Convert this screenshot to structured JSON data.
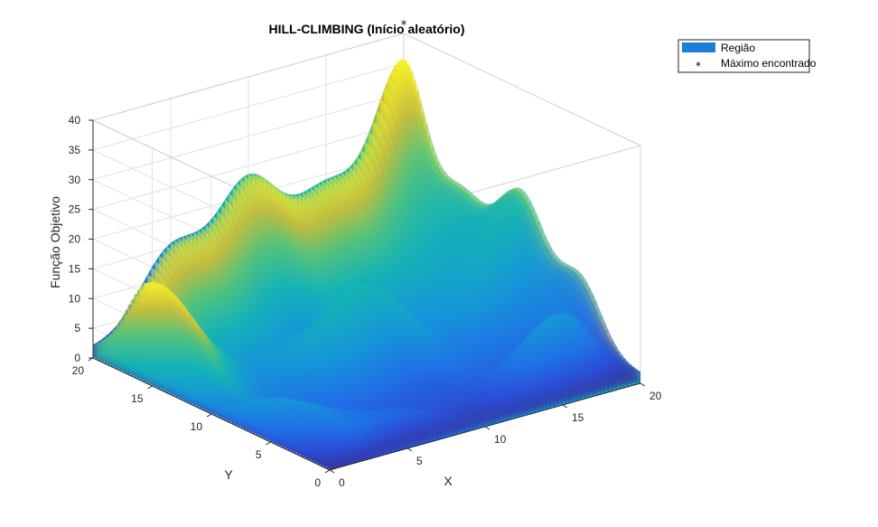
{
  "chart_data": {
    "type": "surface",
    "title": "HILL-CLIMBING (Início aleatório)",
    "xlabel": "X",
    "ylabel": "Y",
    "zlabel": "Função Objetivo",
    "xlim": [
      0,
      20
    ],
    "ylim": [
      0,
      20
    ],
    "zlim": [
      0,
      40
    ],
    "x_ticks": [
      "0",
      "5",
      "10",
      "15",
      "20"
    ],
    "y_ticks": [
      "0",
      "5",
      "10",
      "15",
      "20"
    ],
    "z_ticks": [
      "0",
      "5",
      "10",
      "15",
      "20",
      "25",
      "30",
      "35",
      "40"
    ],
    "grid": true,
    "colormap": "parula",
    "legend_position": "top-right",
    "series": [
      {
        "name": "Região",
        "kind": "surface",
        "color": "#1a7fd6"
      },
      {
        "name": "Máximo encontrado",
        "kind": "marker",
        "marker": "*",
        "color": "#000000",
        "point": {
          "x": 20,
          "y": 20,
          "z": 42
        }
      }
    ]
  }
}
